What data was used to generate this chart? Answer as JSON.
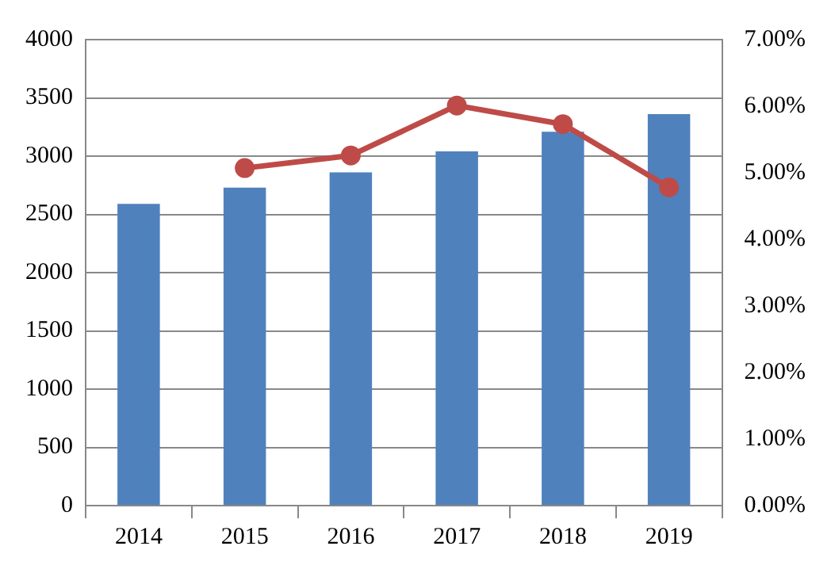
{
  "chart_data": {
    "type": "bar",
    "categories": [
      "2014",
      "2015",
      "2016",
      "2017",
      "2018",
      "2019"
    ],
    "series": [
      {
        "color": "#4f81bd",
        "values": [
          2590,
          2730,
          2860,
          3040,
          3210,
          3360
        ]
      },
      {
        "type": "line",
        "axis": "y2",
        "color": "#be4b48",
        "values": [
          null,
          5.07,
          5.26,
          6.01,
          5.73,
          4.78
        ]
      }
    ],
    "ylim": [
      0,
      4000
    ],
    "yticks": [
      0,
      500,
      1000,
      1500,
      2000,
      2500,
      3000,
      3500,
      4000
    ],
    "y2lim": [
      0,
      7
    ],
    "y2ticks": [
      {
        "value": 0,
        "label": "0.00%"
      },
      {
        "value": 1,
        "label": "1.00%"
      },
      {
        "value": 2,
        "label": "2.00%"
      },
      {
        "value": 3,
        "label": "3.00%"
      },
      {
        "value": 4,
        "label": "4.00%"
      },
      {
        "value": 5,
        "label": "5.00%"
      },
      {
        "value": 6,
        "label": "6.00%"
      },
      {
        "value": 7,
        "label": "7.00%"
      }
    ],
    "grid": "y",
    "marker": "circle",
    "line_style": "solid",
    "legend": false
  }
}
